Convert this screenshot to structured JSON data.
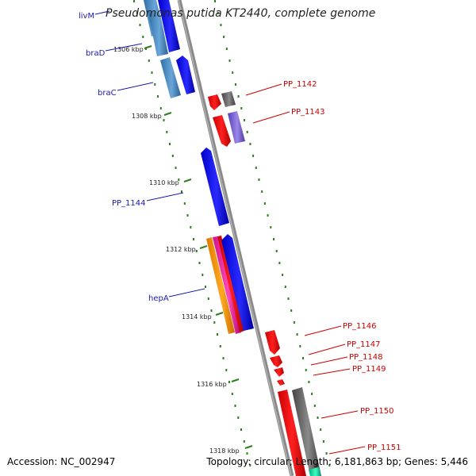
{
  "title": "Pseudomonas putida KT2440, complete genome",
  "accession": "Accession: NC_002947",
  "summary": "Topology: circular; Length: 6,181,863 bp; Genes: 5,446",
  "colors": {
    "backbone": "#888888",
    "tick": "#2e7d1e",
    "left_label": "#1a1aaa",
    "right_label": "#cc0000",
    "ruler_label": "#222222"
  },
  "ruler": [
    "1306 kbp",
    "1308 kbp",
    "1310 kbp",
    "1312 kbp",
    "1314 kbp",
    "1316 kbp",
    "1318 kbp"
  ],
  "left_genes": [
    "livM",
    "braD",
    "braC",
    "PP_1144",
    "hepA"
  ],
  "right_genes": [
    "PP_1142",
    "PP_1143",
    "PP_1146",
    "PP_1147",
    "PP_1148",
    "PP_1149",
    "PP_1150",
    "PP_1151"
  ]
}
